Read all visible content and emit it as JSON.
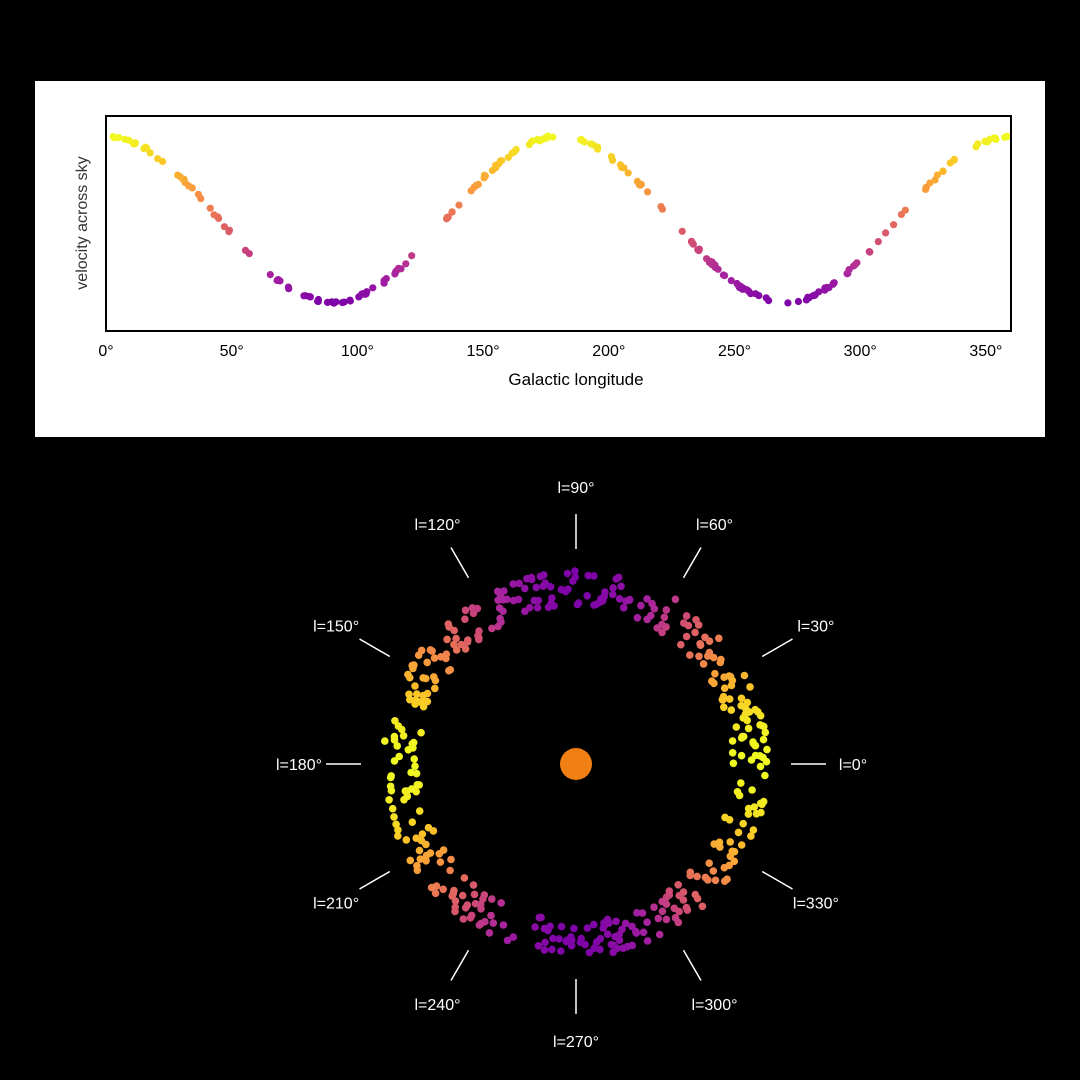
{
  "chart_data": [
    {
      "type": "scatter",
      "xlabel": "Galactic longitude",
      "ylabel": "velocity across sky",
      "xlim": [
        0,
        360
      ],
      "ylim": [
        -1.35,
        1.25
      ],
      "x_ticks": [
        "0°",
        "50°",
        "100°",
        "150°",
        "200°",
        "250°",
        "300°",
        "350°"
      ],
      "x_tick_values": [
        0,
        50,
        100,
        150,
        200,
        250,
        300,
        350
      ],
      "y_ticks_shown": false,
      "grid": false,
      "colormap": "plasma",
      "series": [
        {
          "relation": "velocity ≈ cos(2 × longitude)",
          "x_range": [
            0,
            360
          ],
          "point_count": 230
        }
      ]
    },
    {
      "type": "scatter",
      "layout": "polar ring of points around a central marker",
      "angle_labels": [
        "l=0°",
        "l=30°",
        "l=60°",
        "l=90°",
        "l=120°",
        "l=150°",
        "l=180°",
        "l=210°",
        "l=240°",
        "l=270°",
        "l=300°",
        "l=330°"
      ],
      "angle_values": [
        0,
        30,
        60,
        90,
        120,
        150,
        180,
        210,
        240,
        270,
        300,
        330
      ],
      "point_count": 420,
      "center_marker_color": "#f07f14",
      "colormap": "plasma"
    }
  ],
  "colors": {
    "background": "#000000",
    "panel": "#ffffff",
    "plasma_stops": [
      "#7e03a8",
      "#a823a0",
      "#cc4778",
      "#e66c5c",
      "#f89540",
      "#fbc227",
      "#f0f921"
    ]
  }
}
